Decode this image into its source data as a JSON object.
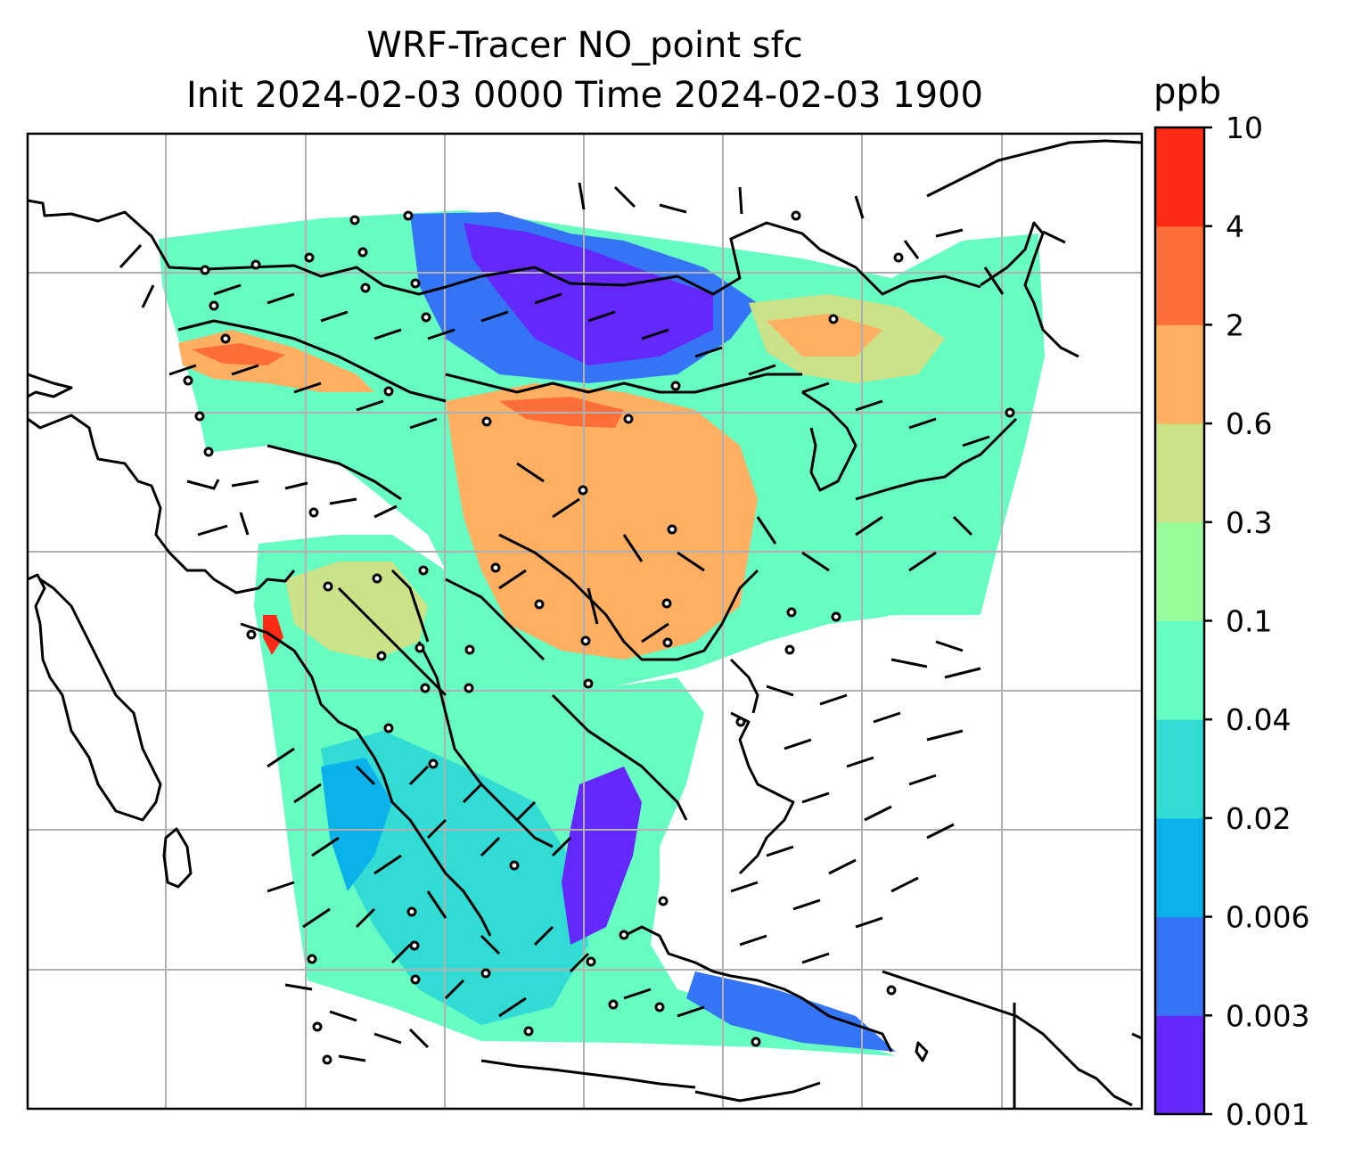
{
  "title": {
    "line1": "WRF-Tracer NO_point sfc",
    "line2": "Init 2024-02-03 0000 Time 2024-02-03 1900"
  },
  "colorbar": {
    "unit_label": "ppb",
    "levels": [
      "0.001",
      "0.003",
      "0.006",
      "0.02",
      "0.04",
      "0.1",
      "0.3",
      "0.6",
      "2",
      "4",
      "10"
    ],
    "colors": [
      "#6528fa",
      "#3574f5",
      "#0bb2ea",
      "#32dcd5",
      "#66fcc2",
      "#99fc9b",
      "#cce288",
      "#ffaf62",
      "#fe6e39",
      "#ff2b16"
    ]
  },
  "map": {
    "field": "NO_point surface tracer concentration",
    "features": [
      "coastlines",
      "country-borders",
      "gridlines",
      "wind-barbs"
    ]
  }
}
